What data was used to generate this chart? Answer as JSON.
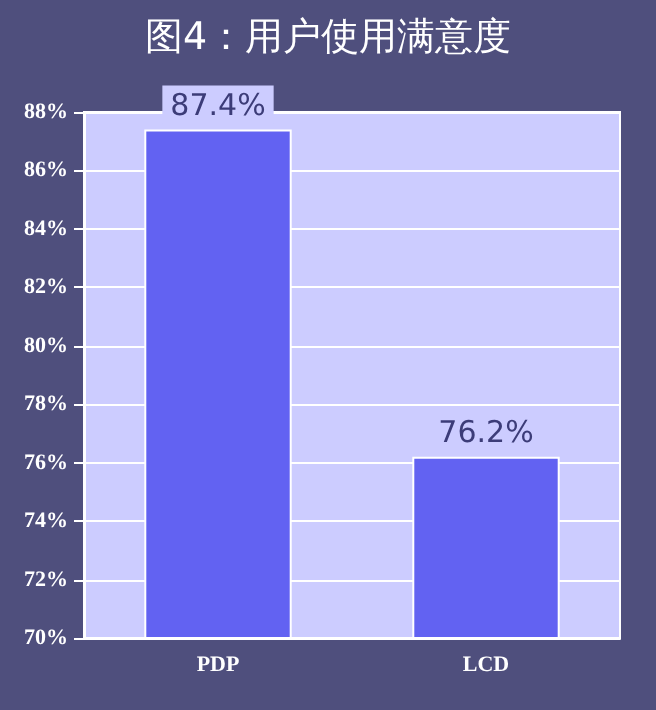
{
  "chart_data": {
    "type": "bar",
    "title": "图4：用户使用满意度",
    "categories": [
      "PDP",
      "LCD"
    ],
    "values": [
      87.4,
      76.2
    ],
    "value_labels": [
      "87.4%",
      "76.2%"
    ],
    "color": "#6262f2",
    "ylim": [
      70,
      88
    ],
    "yticks": [
      {
        "value": 70,
        "label": "70%"
      },
      {
        "value": 72,
        "label": "72%"
      },
      {
        "value": 74,
        "label": "74%"
      },
      {
        "value": 76,
        "label": "76%"
      },
      {
        "value": 78,
        "label": "78%"
      },
      {
        "value": 80,
        "label": "80%"
      },
      {
        "value": 82,
        "label": "82%"
      },
      {
        "value": 84,
        "label": "84%"
      },
      {
        "value": 86,
        "label": "86%"
      },
      {
        "value": 88,
        "label": "88%"
      }
    ],
    "grid": "y"
  }
}
